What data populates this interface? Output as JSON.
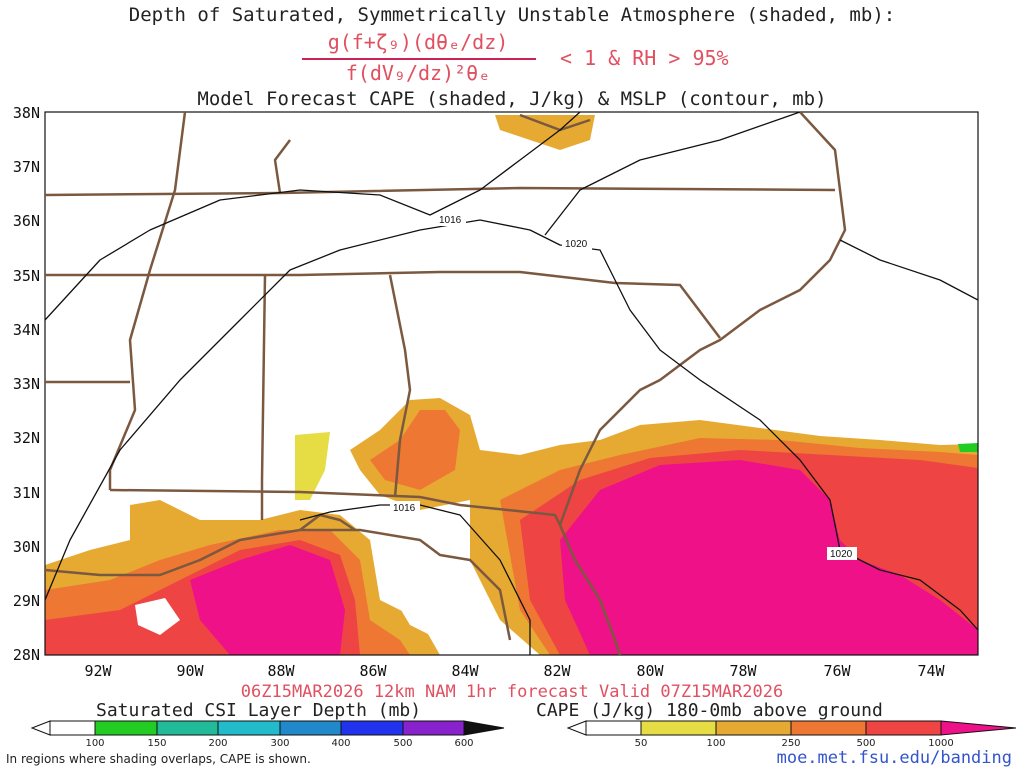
{
  "title": {
    "line1": "Depth of Saturated, Symmetrically Unstable Atmosphere (shaded, mb):",
    "numerator": "g(f+ζ₉)(dθₑ/dz)",
    "denominator": "f(dV₉/dz)²θₑ",
    "condition": "< 1 & RH > 95%",
    "line2": "Model Forecast CAPE (shaded, J/kg) & MSLP (contour, mb)"
  },
  "lat_labels": [
    "38N",
    "37N",
    "36N",
    "35N",
    "34N",
    "33N",
    "32N",
    "31N",
    "30N",
    "29N",
    "28N"
  ],
  "lon_labels": [
    "92W",
    "90W",
    "88W",
    "86W",
    "84W",
    "82W",
    "80W",
    "78W",
    "76W",
    "74W"
  ],
  "contour_labels": [
    {
      "text": "1016"
    },
    {
      "text": "1020"
    },
    {
      "text": "1016"
    },
    {
      "text": "1020"
    }
  ],
  "valid_line": "06Z15MAR2026 12km NAM 1hr forecast Valid 07Z15MAR2026",
  "colorbar_csi": {
    "title": "Saturated CSI Layer Depth (mb)",
    "labels": [
      "100",
      "150",
      "200",
      "300",
      "400",
      "500",
      "600"
    ],
    "colors": [
      "#ffffff",
      "#22cc22",
      "#22bb99",
      "#22bbcc",
      "#2288cc",
      "#2233ee",
      "#8822cc",
      "#111111"
    ]
  },
  "colorbar_cape": {
    "title": "CAPE (J/kg) 180-0mb above ground",
    "labels": [
      "50",
      "100",
      "250",
      "500",
      "1000"
    ],
    "colors": [
      "#ffffff",
      "#e6dd44",
      "#e6aa33",
      "#ee7733",
      "#ee4444",
      "#ee1188"
    ]
  },
  "footnote": "In regions where shading overlaps, CAPE is shown.",
  "url": "moe.met.fsu.edu/banding",
  "colors": {
    "map_border": "#7b5840",
    "contour": "#111111",
    "cape_low": "#e6dd44",
    "cape_250": "#e6aa33",
    "cape_500": "#ee7733",
    "cape_750": "#ee4444",
    "cape_1000": "#ee1188"
  }
}
